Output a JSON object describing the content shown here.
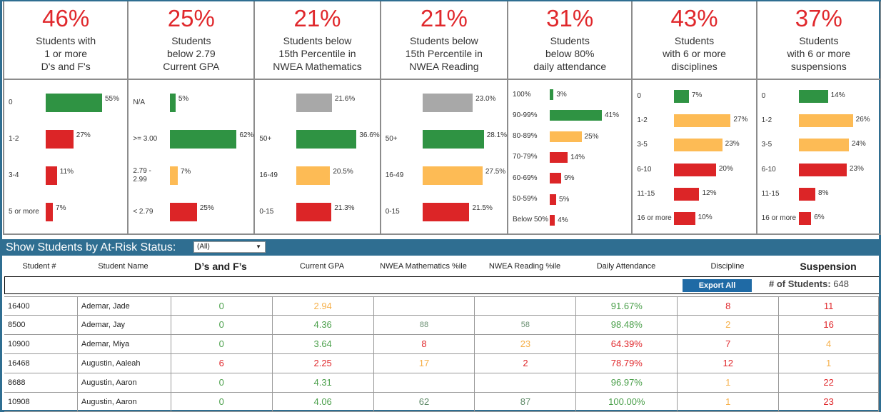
{
  "colors": {
    "green": "#2f9343",
    "red": "#dc2527",
    "orange": "#fdbb55",
    "gray": "#a8a8a8",
    "banner": "#2f6e91",
    "kpi": "#e0282c"
  },
  "panels": [
    {
      "pct": "46%",
      "label": "Students with\n1 or more\nD's and F's",
      "bars": [
        {
          "cat": "0",
          "value": 55,
          "label": "55%",
          "color": "green"
        },
        {
          "cat": "1-2",
          "value": 27,
          "label": "27%",
          "color": "red"
        },
        {
          "cat": "3-4",
          "value": 11,
          "label": "11%",
          "color": "red"
        },
        {
          "cat": "5 or more",
          "value": 7,
          "label": "7%",
          "color": "red"
        }
      ]
    },
    {
      "pct": "25%",
      "label": "Students\nbelow 2.79\nCurrent GPA",
      "bars": [
        {
          "cat": "N/A",
          "value": 5,
          "label": "5%",
          "color": "green"
        },
        {
          "cat": ">= 3.00",
          "value": 62,
          "label": "62%",
          "color": "green"
        },
        {
          "cat": "2.79 -\n2.99",
          "value": 7,
          "label": "7%",
          "color": "orange"
        },
        {
          "cat": "< 2.79",
          "value": 25,
          "label": "25%",
          "color": "red"
        }
      ]
    },
    {
      "pct": "21%",
      "label": "Students below\n15th Percentile in\nNWEA Mathematics",
      "bars": [
        {
          "cat": "",
          "value": 21.6,
          "label": "21.6%",
          "color": "gray"
        },
        {
          "cat": "50+",
          "value": 36.6,
          "label": "36.6%",
          "color": "green"
        },
        {
          "cat": "16-49",
          "value": 20.5,
          "label": "20.5%",
          "color": "orange"
        },
        {
          "cat": "0-15",
          "value": 21.3,
          "label": "21.3%",
          "color": "red"
        }
      ]
    },
    {
      "pct": "21%",
      "label": "Students below\n15th Percentile in\nNWEA Reading",
      "bars": [
        {
          "cat": "",
          "value": 23.0,
          "label": "23.0%",
          "color": "gray"
        },
        {
          "cat": "50+",
          "value": 28.1,
          "label": "28.1%",
          "color": "green"
        },
        {
          "cat": "16-49",
          "value": 27.5,
          "label": "27.5%",
          "color": "orange"
        },
        {
          "cat": "0-15",
          "value": 21.5,
          "label": "21.5%",
          "color": "red"
        }
      ]
    },
    {
      "pct": "31%",
      "label": "Students\nbelow 80%\ndaily attendance",
      "bars": [
        {
          "cat": "100%",
          "value": 3,
          "label": "3%",
          "color": "green"
        },
        {
          "cat": "90-99%",
          "value": 41,
          "label": "41%",
          "color": "green"
        },
        {
          "cat": "80-89%",
          "value": 25,
          "label": "25%",
          "color": "orange"
        },
        {
          "cat": "70-79%",
          "value": 14,
          "label": "14%",
          "color": "red"
        },
        {
          "cat": "60-69%",
          "value": 9,
          "label": "9%",
          "color": "red"
        },
        {
          "cat": "50-59%",
          "value": 5,
          "label": "5%",
          "color": "red"
        },
        {
          "cat": "Below 50%",
          "value": 4,
          "label": "4%",
          "color": "red"
        }
      ]
    },
    {
      "pct": "43%",
      "label": "Students\nwith 6 or more\ndisciplines",
      "bars": [
        {
          "cat": "0",
          "value": 7,
          "label": "7%",
          "color": "green"
        },
        {
          "cat": "1-2",
          "value": 27,
          "label": "27%",
          "color": "orange"
        },
        {
          "cat": "3-5",
          "value": 23,
          "label": "23%",
          "color": "orange"
        },
        {
          "cat": "6-10",
          "value": 20,
          "label": "20%",
          "color": "red"
        },
        {
          "cat": "11-15",
          "value": 12,
          "label": "12%",
          "color": "red"
        },
        {
          "cat": "16 or more",
          "value": 10,
          "label": "10%",
          "color": "red"
        }
      ]
    },
    {
      "pct": "37%",
      "label": "Students\nwith 6 or more\nsuspensions",
      "bars": [
        {
          "cat": "0",
          "value": 14,
          "label": "14%",
          "color": "green"
        },
        {
          "cat": "1-2",
          "value": 26,
          "label": "26%",
          "color": "orange"
        },
        {
          "cat": "3-5",
          "value": 24,
          "label": "24%",
          "color": "orange"
        },
        {
          "cat": "6-10",
          "value": 23,
          "label": "23%",
          "color": "red"
        },
        {
          "cat": "11-15",
          "value": 8,
          "label": "8%",
          "color": "red"
        },
        {
          "cat": "16 or more",
          "value": 6,
          "label": "6%",
          "color": "red"
        }
      ]
    }
  ],
  "banner": {
    "title": "Show Students by At-Risk Status:",
    "filter_value": "(All)"
  },
  "table": {
    "headers": [
      "Student #",
      "Student Name",
      "D’s and F’s",
      "Current GPA",
      "NWEA Mathematics %ile",
      "NWEA Reading %ile",
      "Daily Attendance",
      "Discipline",
      "Suspension"
    ],
    "export_label": "Export All",
    "count_label": "# of Students:",
    "count_value": "648",
    "rows": [
      [
        {
          "v": "16400"
        },
        {
          "v": "Ademar, Jade"
        },
        {
          "v": "0",
          "c": "g"
        },
        {
          "v": "2.94",
          "c": "o"
        },
        {
          "v": ""
        },
        {
          "v": ""
        },
        {
          "v": "91.67%",
          "c": "g"
        },
        {
          "v": "8",
          "c": "r"
        },
        {
          "v": "11",
          "c": "r"
        }
      ],
      [
        {
          "v": "8500"
        },
        {
          "v": "Ademar, Jay"
        },
        {
          "v": "0",
          "c": "g"
        },
        {
          "v": "4.36",
          "c": "g"
        },
        {
          "v": "88",
          "c": "s"
        },
        {
          "v": "58",
          "c": "s"
        },
        {
          "v": "98.48%",
          "c": "g"
        },
        {
          "v": "2",
          "c": "o"
        },
        {
          "v": "16",
          "c": "r"
        }
      ],
      [
        {
          "v": "10900"
        },
        {
          "v": "Ademar, Miya"
        },
        {
          "v": "0",
          "c": "g"
        },
        {
          "v": "3.64",
          "c": "g"
        },
        {
          "v": "8",
          "c": "r"
        },
        {
          "v": "23",
          "c": "o"
        },
        {
          "v": "64.39%",
          "c": "r"
        },
        {
          "v": "7",
          "c": "r"
        },
        {
          "v": "4",
          "c": "o"
        }
      ],
      [
        {
          "v": "16468"
        },
        {
          "v": "Augustin, Aaleah"
        },
        {
          "v": "6",
          "c": "r"
        },
        {
          "v": "2.25",
          "c": "r"
        },
        {
          "v": "17",
          "c": "o"
        },
        {
          "v": "2",
          "c": "r"
        },
        {
          "v": "78.79%",
          "c": "r"
        },
        {
          "v": "12",
          "c": "r"
        },
        {
          "v": "1",
          "c": "o"
        }
      ],
      [
        {
          "v": "8688"
        },
        {
          "v": "Augustin, Aaron"
        },
        {
          "v": "0",
          "c": "g"
        },
        {
          "v": "4.31",
          "c": "g"
        },
        {
          "v": ""
        },
        {
          "v": ""
        },
        {
          "v": "96.97%",
          "c": "g"
        },
        {
          "v": "1",
          "c": "o"
        },
        {
          "v": "22",
          "c": "r"
        }
      ],
      [
        {
          "v": "10908"
        },
        {
          "v": "Augustin, Aaron"
        },
        {
          "v": "0",
          "c": "g"
        },
        {
          "v": "4.06",
          "c": "g"
        },
        {
          "v": "62",
          "c": "s2"
        },
        {
          "v": "87",
          "c": "s2"
        },
        {
          "v": "100.00%",
          "c": "g"
        },
        {
          "v": "1",
          "c": "o"
        },
        {
          "v": "23",
          "c": "r"
        }
      ]
    ]
  }
}
